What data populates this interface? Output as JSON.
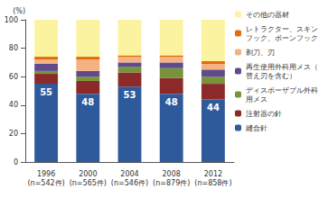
{
  "chart_data": {
    "type": "bar",
    "stacked": true,
    "grid": false,
    "legend": "right",
    "y_label": "(%)",
    "categories": [
      "1996\n(n=542件)",
      "2000\n(n=565件)",
      "2004\n(n=546件)",
      "2008\n(n=879件)",
      "2012\n(n=858件)"
    ],
    "ylim": [
      0,
      100
    ],
    "yticks": [
      0,
      20,
      40,
      60,
      80,
      100
    ],
    "series": [
      {
        "name": "縫合針",
        "color": "#2e5a9c",
        "values": [
          55,
          48,
          53,
          48,
          44
        ],
        "data_labels": true
      },
      {
        "name": "注射器の針",
        "color": "#8c2a2a",
        "values": [
          7,
          9,
          10,
          11,
          11
        ]
      },
      {
        "name": "ディスポーザブル外科用メス",
        "color": "#77933c",
        "values": [
          2,
          3,
          4,
          7,
          5
        ]
      },
      {
        "name": "再生使用外科用メス（替え刃を含む）",
        "color": "#5f4b8b",
        "values": [
          5,
          4,
          3,
          4,
          5
        ]
      },
      {
        "name": "剃刀、刃",
        "color": "#f4b183",
        "values": [
          3,
          8,
          4,
          4,
          4
        ]
      },
      {
        "name": "レトラクター、スキンフック、ボーンフック",
        "color": "#e36c09",
        "values": [
          2,
          2,
          1,
          1,
          2
        ]
      },
      {
        "name": "その他の器材",
        "color": "#fbf3a0",
        "values": [
          26,
          26,
          25,
          25,
          29
        ]
      }
    ]
  }
}
